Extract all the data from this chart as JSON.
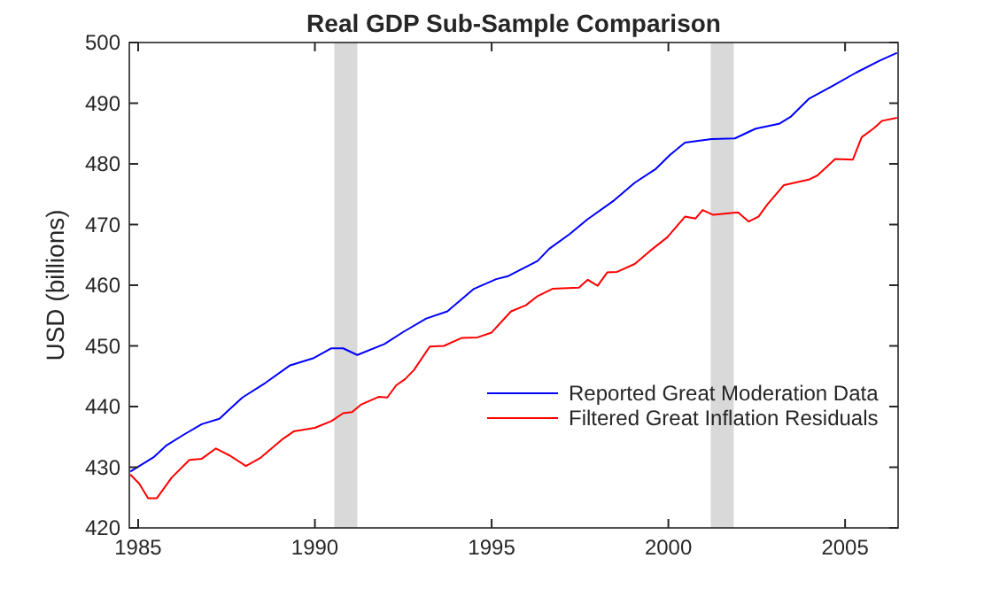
{
  "chart_data": {
    "type": "line",
    "title": "Real GDP Sub-Sample Comparison",
    "ylabel": "USD (billions)",
    "xlim": [
      1984.75,
      2006.5
    ],
    "xticks": [
      1985,
      1990,
      1995,
      2000,
      2005
    ],
    "ylim": [
      420,
      500
    ],
    "yticks": [
      420,
      430,
      440,
      450,
      460,
      470,
      480,
      490,
      500
    ],
    "grid": false,
    "legend": "right",
    "bands": [
      {
        "axis": "x",
        "from": 1990.55,
        "to": 1991.2,
        "color": "#d9d9d9"
      },
      {
        "axis": "x",
        "from": 2001.2,
        "to": 2001.85,
        "color": "#d9d9d9"
      }
    ],
    "series": [
      {
        "name": "Reported Great Moderation Data",
        "color": "#0000ff",
        "x": [
          1984.78,
          1985.45,
          1985.8,
          1986.3,
          1986.8,
          1987.3,
          1987.95,
          1988.6,
          1989.3,
          1989.97,
          1990.47,
          1990.8,
          1991.2,
          1991.97,
          1992.5,
          1993.15,
          1993.75,
          1994.5,
          1995.13,
          1995.47,
          1996.3,
          1996.63,
          1997.2,
          1997.7,
          1998.47,
          1999.05,
          1999.63,
          2000.05,
          2000.47,
          2001.22,
          2001.88,
          2002.47,
          2003.13,
          2003.47,
          2003.97,
          2004.63,
          2005.3,
          2005.97,
          2006.47
        ],
        "values": [
          429.3,
          431.7,
          433.6,
          435.4,
          437.1,
          438,
          441.5,
          443.9,
          446.8,
          448,
          449.6,
          449.6,
          448.5,
          450.3,
          452.3,
          454.5,
          455.7,
          459.4,
          461,
          461.5,
          464,
          466,
          468.4,
          470.8,
          474,
          476.9,
          479.1,
          481.5,
          483.5,
          484.1,
          484.2,
          485.8,
          486.6,
          487.8,
          490.7,
          492.8,
          495,
          497,
          498.3
        ]
      },
      {
        "name": "Filtered Great Inflation Residuals",
        "color": "#ff0000",
        "x": [
          1984.78,
          1985.03,
          1985.28,
          1985.53,
          1985.95,
          1986.45,
          1986.8,
          1987.2,
          1987.6,
          1988.05,
          1988.45,
          1989.1,
          1989.4,
          1990,
          1990.47,
          1990.8,
          1991.05,
          1991.3,
          1991.8,
          1992.05,
          1992.3,
          1992.55,
          1992.8,
          1993.25,
          1993.65,
          1994.15,
          1994.6,
          1995.0,
          1995.55,
          1995.97,
          1996.3,
          1996.72,
          1997.47,
          1997.72,
          1998.0,
          1998.27,
          1998.55,
          1999.05,
          1999.47,
          1999.97,
          2000.47,
          2000.77,
          2000.97,
          2001.27,
          2001.97,
          2002.27,
          2002.55,
          2002.8,
          2003.27,
          2003.97,
          2004.22,
          2004.72,
          2005.22,
          2005.47,
          2005.8,
          2006.05,
          2006.47
        ],
        "values": [
          428.8,
          427.3,
          424.9,
          424.9,
          428.3,
          431.2,
          431.4,
          433.1,
          431.9,
          430.2,
          431.5,
          434.7,
          435.9,
          436.5,
          437.6,
          438.9,
          439.1,
          440.3,
          441.6,
          441.5,
          443.5,
          444.5,
          446,
          449.9,
          450,
          451.3,
          451.4,
          452.2,
          455.7,
          456.7,
          458.2,
          459.4,
          459.6,
          460.9,
          459.9,
          462.1,
          462.2,
          463.5,
          465.6,
          467.9,
          471.3,
          471,
          472.4,
          471.6,
          472,
          470.5,
          471.3,
          473.3,
          476.5,
          477.4,
          478.1,
          480.8,
          480.7,
          484.4,
          485.8,
          487.1,
          487.6
        ]
      }
    ]
  }
}
